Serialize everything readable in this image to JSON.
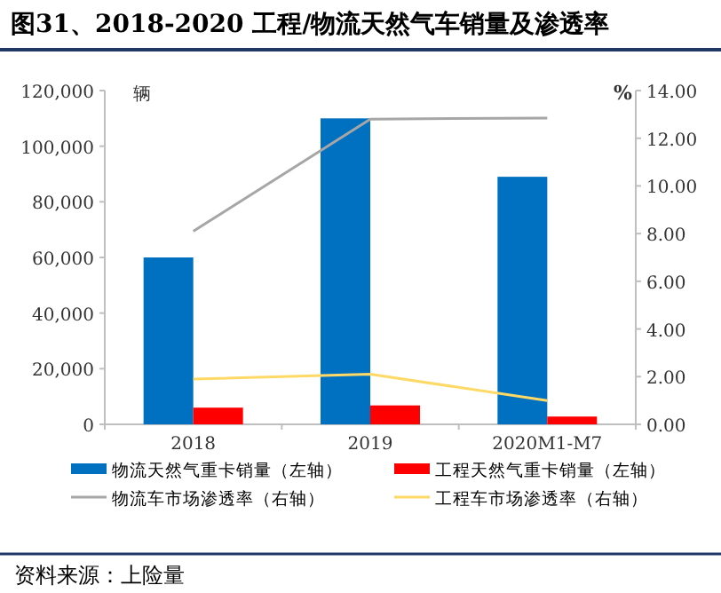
{
  "chart_data": {
    "type": "bar",
    "title": "图31、2018-2020 工程/物流天然气车销量及渗透率",
    "categories": [
      "2018",
      "2019",
      "2020M1-M7"
    ],
    "ylabel": "辆",
    "y2label": "%",
    "ylim": [
      0,
      120000
    ],
    "yticks": [
      {
        "value": 0,
        "label": "0"
      },
      {
        "value": 20000,
        "label": "20,000"
      },
      {
        "value": 40000,
        "label": "40,000"
      },
      {
        "value": 60000,
        "label": "60,000"
      },
      {
        "value": 80000,
        "label": "80,000"
      },
      {
        "value": 100000,
        "label": "100,000"
      },
      {
        "value": 120000,
        "label": "120,000"
      }
    ],
    "y2lim": [
      0,
      14
    ],
    "y2ticks": [
      {
        "value": 0,
        "label": "0.00"
      },
      {
        "value": 2,
        "label": "2.00"
      },
      {
        "value": 4,
        "label": "4.00"
      },
      {
        "value": 6,
        "label": "6.00"
      },
      {
        "value": 8,
        "label": "8.00"
      },
      {
        "value": 10,
        "label": "10.00"
      },
      {
        "value": 12,
        "label": "12.00"
      },
      {
        "value": 14,
        "label": "14.00"
      }
    ],
    "series": [
      {
        "name": "物流天然气重卡销量（左轴）",
        "type": "bar",
        "color": "#0070c0",
        "values": [
          60000,
          110000,
          89000
        ]
      },
      {
        "name": "工程天然气重卡销量（左轴）",
        "type": "bar",
        "color": "#ff0000",
        "values": [
          6000,
          6800,
          2800
        ]
      },
      {
        "name": "物流车市场渗透率（右轴）",
        "type": "line",
        "axis": "y2",
        "color": "#a6a6a6",
        "values": [
          8.1,
          12.8,
          12.85
        ]
      },
      {
        "name": "工程车市场渗透率（右轴）",
        "type": "line",
        "axis": "y2",
        "color": "#ffd966",
        "values": [
          1.9,
          2.1,
          1.0
        ]
      }
    ],
    "legend": "bottom",
    "annotations": [
      "资料来源：上险量"
    ]
  }
}
